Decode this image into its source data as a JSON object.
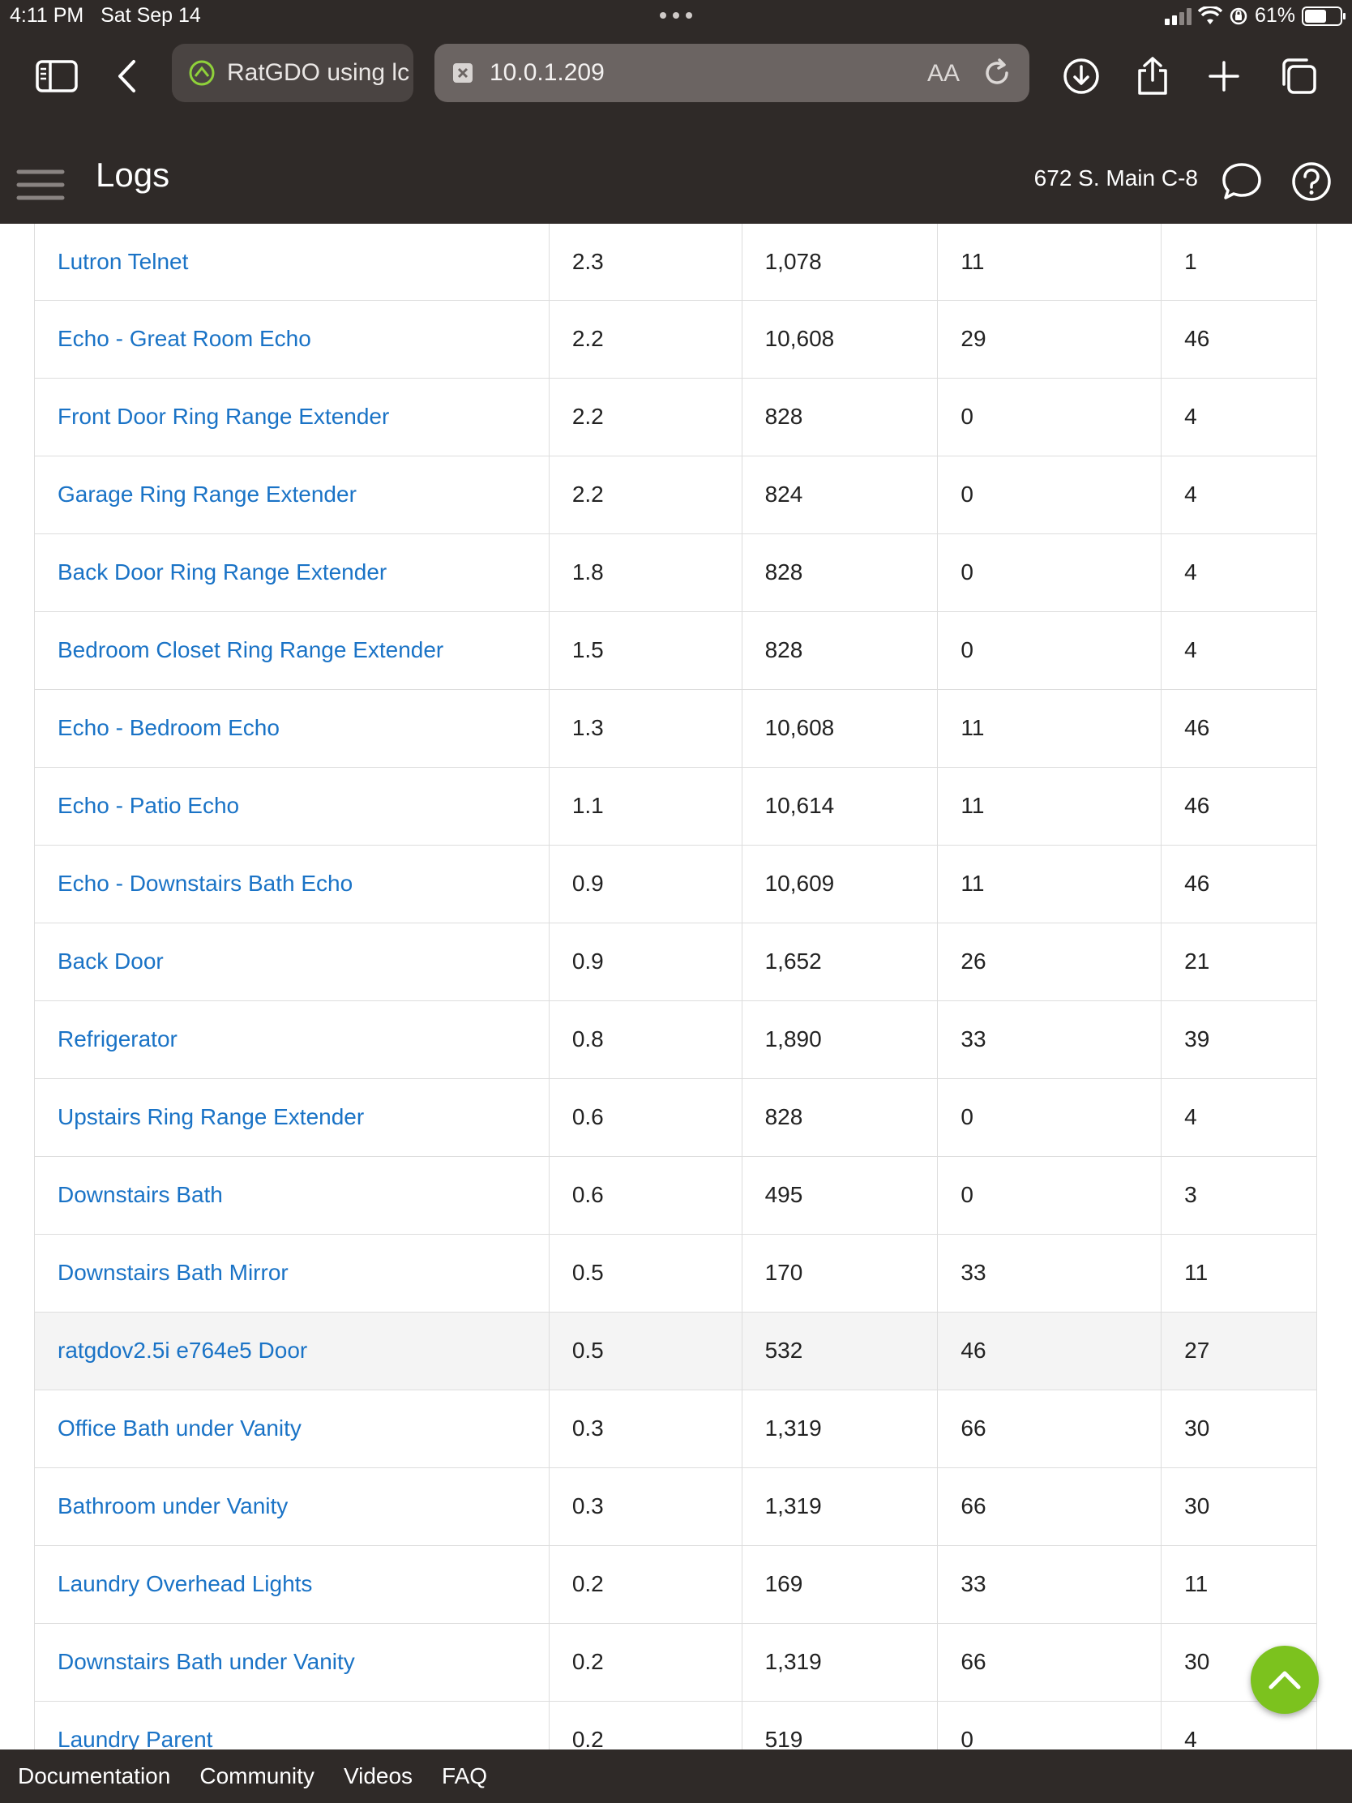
{
  "status_bar": {
    "time": "4:11 PM",
    "date": "Sat Sep 14",
    "battery": "61%",
    "battery_level": 0.61
  },
  "browser": {
    "tab_title": "RatGDO using lc",
    "address": "10.0.1.209",
    "aa_label": "AA",
    "icons": [
      "sidebar-icon",
      "back-icon",
      "download-icon",
      "share-icon",
      "plus-icon",
      "tabs-icon"
    ]
  },
  "header": {
    "title": "Logs",
    "location": "672 S. Main C-8"
  },
  "colors": {
    "chrome": "#2f2a28",
    "link": "#1a73c6",
    "fab": "#7cc21e"
  },
  "table": {
    "rows": [
      {
        "name": "Lutron Telnet",
        "c1": "2.3",
        "c2": "1,078",
        "c3": "11",
        "c4": "1"
      },
      {
        "name": "Echo - Great Room Echo",
        "c1": "2.2",
        "c2": "10,608",
        "c3": "29",
        "c4": "46"
      },
      {
        "name": "Front Door Ring Range Extender",
        "c1": "2.2",
        "c2": "828",
        "c3": "0",
        "c4": "4"
      },
      {
        "name": "Garage Ring Range Extender",
        "c1": "2.2",
        "c2": "824",
        "c3": "0",
        "c4": "4"
      },
      {
        "name": "Back Door Ring Range Extender",
        "c1": "1.8",
        "c2": "828",
        "c3": "0",
        "c4": "4"
      },
      {
        "name": "Bedroom Closet Ring Range Extender",
        "c1": "1.5",
        "c2": "828",
        "c3": "0",
        "c4": "4"
      },
      {
        "name": "Echo - Bedroom Echo",
        "c1": "1.3",
        "c2": "10,608",
        "c3": "11",
        "c4": "46"
      },
      {
        "name": "Echo - Patio Echo",
        "c1": "1.1",
        "c2": "10,614",
        "c3": "11",
        "c4": "46"
      },
      {
        "name": "Echo - Downstairs Bath Echo",
        "c1": "0.9",
        "c2": "10,609",
        "c3": "11",
        "c4": "46"
      },
      {
        "name": "Back Door",
        "c1": "0.9",
        "c2": "1,652",
        "c3": "26",
        "c4": "21"
      },
      {
        "name": "Refrigerator",
        "c1": "0.8",
        "c2": "1,890",
        "c3": "33",
        "c4": "39"
      },
      {
        "name": "Upstairs Ring Range Extender",
        "c1": "0.6",
        "c2": "828",
        "c3": "0",
        "c4": "4"
      },
      {
        "name": "Downstairs Bath",
        "c1": "0.6",
        "c2": "495",
        "c3": "0",
        "c4": "3"
      },
      {
        "name": "Downstairs Bath Mirror",
        "c1": "0.5",
        "c2": "170",
        "c3": "33",
        "c4": "11"
      },
      {
        "name": "ratgdov2.5i e764e5 Door",
        "c1": "0.5",
        "c2": "532",
        "c3": "46",
        "c4": "27"
      },
      {
        "name": "Office Bath under Vanity",
        "c1": "0.3",
        "c2": "1,319",
        "c3": "66",
        "c4": "30"
      },
      {
        "name": "Bathroom under Vanity",
        "c1": "0.3",
        "c2": "1,319",
        "c3": "66",
        "c4": "30"
      },
      {
        "name": "Laundry Overhead Lights",
        "c1": "0.2",
        "c2": "169",
        "c3": "33",
        "c4": "11"
      },
      {
        "name": "Downstairs Bath under Vanity",
        "c1": "0.2",
        "c2": "1,319",
        "c3": "66",
        "c4": "30"
      },
      {
        "name": "Laundry Parent",
        "c1": "0.2",
        "c2": "519",
        "c3": "0",
        "c4": "4"
      }
    ]
  },
  "footer": {
    "links": [
      "Documentation",
      "Community",
      "Videos",
      "FAQ"
    ]
  }
}
